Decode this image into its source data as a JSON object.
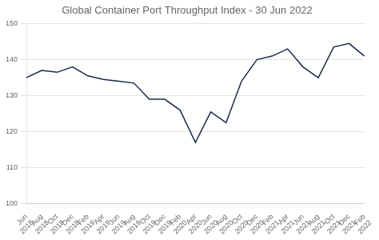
{
  "chart_data": {
    "type": "line",
    "title": "Global Container Port Throughput Index - 30 Jun 2022",
    "categories": [
      "Jun\n2018",
      "Aug\n2018",
      "Oct\n2018",
      "Dec\n2018",
      "Feb\n2019",
      "Apr\n2019",
      "Jun\n2019",
      "Aug\n2019",
      "Oct\n2019",
      "Dec\n2019",
      "Feb\n2020",
      "Apr\n2020",
      "Jun\n2020",
      "Aug\n2020",
      "Oct\n2020",
      "Dec\n2020",
      "Feb\n2021",
      "Apr\n2021",
      "Jun\n2021",
      "Aug\n2021",
      "Oct\n2021",
      "Dec\n2021",
      "Feb\n2022"
    ],
    "values": [
      135.0,
      137.0,
      136.5,
      138.0,
      135.5,
      134.5,
      134.0,
      133.5,
      129.0,
      129.0,
      126.0,
      117.0,
      125.5,
      122.5,
      134.0,
      140.0,
      141.0,
      143.0,
      138.0,
      135.0,
      143.5,
      144.5,
      141.0
    ],
    "color": "#1b2a4a",
    "ylim": [
      100,
      150
    ],
    "yticks": [
      100,
      110,
      120,
      130,
      140,
      150
    ],
    "grid": true
  }
}
